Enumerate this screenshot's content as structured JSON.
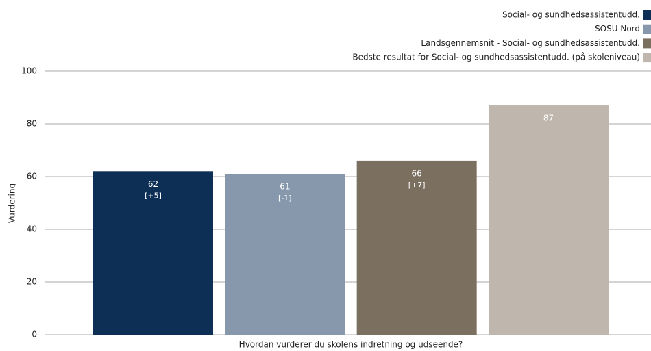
{
  "chart_data": {
    "type": "bar",
    "categories": [
      "Hvordan vurderer du skolens indretning og udseende?"
    ],
    "y_label": "Vurdering",
    "ylim": [
      0,
      100
    ],
    "yticks": [
      0,
      20,
      40,
      60,
      80,
      100
    ],
    "grid": true,
    "legend": "top-right",
    "series": [
      {
        "name": "Social- og sundhedsassistentudd.",
        "color": "#0d2e55",
        "values": [
          62
        ],
        "annotations": [
          "[+5]"
        ]
      },
      {
        "name": "SOSU Nord",
        "color": "#8798ad",
        "values": [
          61
        ],
        "annotations": [
          "[-1]"
        ]
      },
      {
        "name": "Landsgennemsnit - Social- og sundhedsassistentudd.",
        "color": "#7b6f5f",
        "values": [
          66
        ],
        "annotations": [
          "[+7]"
        ]
      },
      {
        "name": "Bedste resultat for Social- og sundhedsassistentudd. (på skoleniveau)",
        "color": "#bfb7ae",
        "values": [
          87
        ]
      }
    ]
  }
}
